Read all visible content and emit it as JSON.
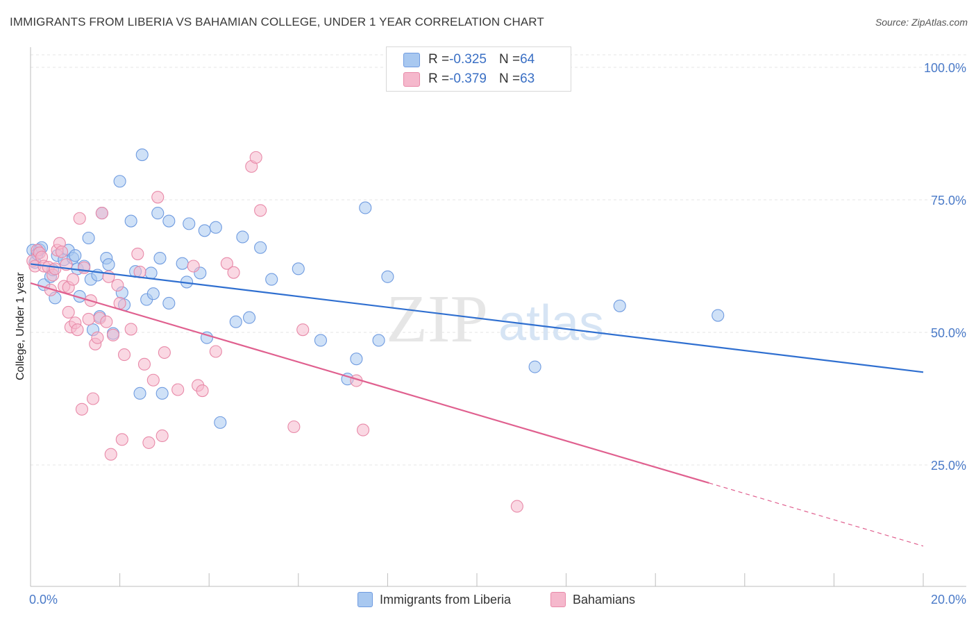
{
  "title": "IMMIGRANTS FROM LIBERIA VS BAHAMIAN COLLEGE, UNDER 1 YEAR CORRELATION CHART",
  "source": "Source: ZipAtlas.com",
  "watermark": {
    "zip": "ZIP",
    "atlas": "atlas"
  },
  "colors": {
    "blue_fill": "#a8c8f0",
    "blue_stroke": "#6f9be0",
    "blue_line": "#2f6fd0",
    "pink_fill": "#f5b8cc",
    "pink_stroke": "#e889a8",
    "pink_line": "#e0608f",
    "axis_label": "#4a7ac8",
    "grid": "#e4e4e4"
  },
  "legend": {
    "rows": [
      {
        "r_label": "R = ",
        "r_value": "-0.325",
        "n_label": "N = ",
        "n_value": "64",
        "color": "#a8c8f0",
        "border": "#6f9be0"
      },
      {
        "r_label": "R = ",
        "r_value": "-0.379",
        "n_label": "N = ",
        "n_value": "63",
        "color": "#f5b8cc",
        "border": "#e889a8"
      }
    ]
  },
  "bottom_legend": [
    {
      "label": "Immigrants from Liberia",
      "color": "#a8c8f0",
      "border": "#6f9be0"
    },
    {
      "label": "Bahamians",
      "color": "#f5b8cc",
      "border": "#e889a8"
    }
  ],
  "chart_data": {
    "type": "scatter",
    "title": "IMMIGRANTS FROM LIBERIA VS BAHAMIAN COLLEGE, UNDER 1 YEAR CORRELATION CHART",
    "xlabel": "",
    "ylabel": "College, Under 1 year",
    "xlim": [
      0,
      20
    ],
    "ylim": [
      0,
      105
    ],
    "x_tick_labels": [
      "0.0%",
      "20.0%"
    ],
    "y_ticks": [
      25,
      50,
      75,
      100
    ],
    "y_tick_labels": [
      "25.0%",
      "50.0%",
      "75.0%",
      "100.0%"
    ],
    "grid": true,
    "legend_position": "top-center",
    "series": [
      {
        "name": "Immigrants from Liberia",
        "color": "#a8c8f0",
        "points": [
          [
            0.05,
            65.5
          ],
          [
            0.1,
            63.2
          ],
          [
            0.15,
            64.8
          ],
          [
            0.2,
            65.6
          ],
          [
            0.25,
            66.0
          ],
          [
            0.3,
            59.0
          ],
          [
            0.45,
            60.5
          ],
          [
            0.5,
            61.8
          ],
          [
            0.55,
            56.5
          ],
          [
            0.6,
            64.5
          ],
          [
            0.75,
            63.7
          ],
          [
            0.85,
            65.5
          ],
          [
            0.95,
            64.0
          ],
          [
            1.0,
            64.5
          ],
          [
            1.05,
            62.0
          ],
          [
            1.1,
            56.8
          ],
          [
            1.2,
            62.5
          ],
          [
            1.3,
            67.8
          ],
          [
            1.35,
            60.0
          ],
          [
            1.4,
            50.5
          ],
          [
            1.5,
            60.8
          ],
          [
            1.55,
            53.0
          ],
          [
            1.6,
            72.5
          ],
          [
            1.7,
            64.0
          ],
          [
            1.75,
            62.8
          ],
          [
            1.85,
            49.8
          ],
          [
            2.0,
            78.5
          ],
          [
            2.05,
            57.5
          ],
          [
            2.1,
            55.2
          ],
          [
            2.25,
            71.0
          ],
          [
            2.35,
            61.5
          ],
          [
            2.45,
            38.5
          ],
          [
            2.5,
            83.5
          ],
          [
            2.6,
            56.2
          ],
          [
            2.7,
            61.2
          ],
          [
            2.75,
            57.3
          ],
          [
            2.85,
            72.5
          ],
          [
            2.9,
            64.0
          ],
          [
            2.95,
            38.5
          ],
          [
            3.1,
            55.5
          ],
          [
            3.1,
            71.0
          ],
          [
            3.4,
            63.0
          ],
          [
            3.5,
            59.5
          ],
          [
            3.55,
            70.5
          ],
          [
            3.8,
            61.2
          ],
          [
            3.9,
            69.2
          ],
          [
            3.95,
            49.0
          ],
          [
            4.15,
            69.8
          ],
          [
            4.25,
            33.0
          ],
          [
            4.6,
            52.0
          ],
          [
            4.75,
            68.0
          ],
          [
            4.9,
            52.8
          ],
          [
            5.15,
            66.0
          ],
          [
            5.4,
            60.0
          ],
          [
            6.0,
            62.0
          ],
          [
            6.5,
            48.5
          ],
          [
            7.1,
            41.2
          ],
          [
            7.3,
            45.0
          ],
          [
            7.5,
            73.5
          ],
          [
            7.8,
            48.5
          ],
          [
            8.0,
            60.5
          ],
          [
            11.3,
            43.5
          ],
          [
            13.2,
            55.0
          ],
          [
            15.4,
            53.2
          ]
        ]
      },
      {
        "name": "Bahamians",
        "color": "#f5b8cc",
        "points": [
          [
            0.05,
            63.5
          ],
          [
            0.1,
            62.5
          ],
          [
            0.15,
            65.5
          ],
          [
            0.2,
            65.0
          ],
          [
            0.25,
            64.2
          ],
          [
            0.3,
            62.5
          ],
          [
            0.4,
            62.3
          ],
          [
            0.45,
            58.0
          ],
          [
            0.5,
            60.8
          ],
          [
            0.55,
            62.0
          ],
          [
            0.6,
            65.5
          ],
          [
            0.65,
            66.8
          ],
          [
            0.7,
            65.2
          ],
          [
            0.75,
            58.7
          ],
          [
            0.8,
            62.8
          ],
          [
            0.85,
            58.5
          ],
          [
            0.85,
            53.8
          ],
          [
            0.9,
            51.0
          ],
          [
            0.95,
            60.0
          ],
          [
            1.0,
            51.8
          ],
          [
            1.05,
            50.5
          ],
          [
            1.1,
            71.5
          ],
          [
            1.15,
            35.5
          ],
          [
            1.2,
            62.2
          ],
          [
            1.3,
            52.5
          ],
          [
            1.35,
            56.0
          ],
          [
            1.4,
            37.5
          ],
          [
            1.45,
            47.8
          ],
          [
            1.5,
            49.0
          ],
          [
            1.55,
            52.7
          ],
          [
            1.6,
            72.5
          ],
          [
            1.7,
            52.0
          ],
          [
            1.75,
            60.5
          ],
          [
            1.8,
            27.0
          ],
          [
            1.85,
            49.5
          ],
          [
            1.95,
            58.9
          ],
          [
            2.0,
            55.5
          ],
          [
            2.05,
            29.8
          ],
          [
            2.1,
            45.8
          ],
          [
            2.25,
            50.6
          ],
          [
            2.4,
            64.8
          ],
          [
            2.45,
            61.4
          ],
          [
            2.55,
            44.0
          ],
          [
            2.65,
            29.2
          ],
          [
            2.75,
            41.0
          ],
          [
            2.85,
            75.5
          ],
          [
            2.95,
            30.5
          ],
          [
            3.0,
            46.2
          ],
          [
            3.3,
            39.2
          ],
          [
            3.65,
            62.5
          ],
          [
            3.75,
            40.0
          ],
          [
            3.85,
            39.0
          ],
          [
            4.15,
            46.4
          ],
          [
            4.4,
            63.0
          ],
          [
            4.55,
            61.3
          ],
          [
            4.95,
            81.3
          ],
          [
            5.05,
            83.0
          ],
          [
            5.15,
            73.0
          ],
          [
            5.9,
            32.2
          ],
          [
            6.1,
            50.5
          ],
          [
            7.3,
            40.9
          ],
          [
            7.45,
            31.6
          ],
          [
            10.9,
            17.2
          ]
        ]
      }
    ],
    "trend_lines": [
      {
        "series": "Immigrants from Liberia",
        "x": [
          0,
          20
        ],
        "y": [
          62.9,
          42.5
        ]
      },
      {
        "series": "Bahamians",
        "x": [
          0,
          15.2
        ],
        "y": [
          59.3,
          21.6
        ],
        "dashed_extension_to": [
          20,
          9.7
        ]
      }
    ]
  }
}
